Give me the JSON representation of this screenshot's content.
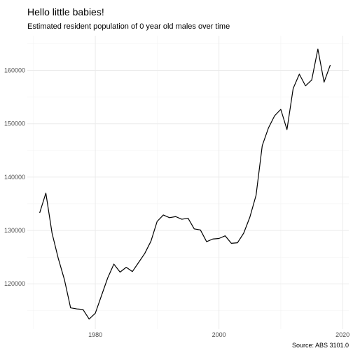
{
  "chart_data": {
    "type": "line",
    "title": "Hello little babies!",
    "subtitle": "Estimated resident population of 0 year old males over time",
    "caption": "Source: ABS 3101.0",
    "xlabel": "",
    "ylabel": "",
    "xlim": [
      1969,
      2021
    ],
    "ylim": [
      111500,
      166500
    ],
    "x_ticks": [
      1980,
      2000,
      2020
    ],
    "y_ticks": [
      120000,
      130000,
      140000,
      150000,
      160000
    ],
    "x_tick_labels": [
      "1980",
      "2000",
      "2020"
    ],
    "y_tick_labels": [
      "120000",
      "130000",
      "140000",
      "150000",
      "160000"
    ],
    "grid": true,
    "legend": "none",
    "line_color": "#000000",
    "x": [
      1971,
      1972,
      1973,
      1974,
      1975,
      1976,
      1977,
      1978,
      1979,
      1980,
      1981,
      1982,
      1983,
      1984,
      1985,
      1986,
      1987,
      1988,
      1989,
      1990,
      1991,
      1992,
      1993,
      1994,
      1995,
      1996,
      1997,
      1998,
      1999,
      2000,
      2001,
      2002,
      2003,
      2004,
      2005,
      2006,
      2007,
      2008,
      2009,
      2010,
      2011,
      2012,
      2013,
      2014,
      2015,
      2016,
      2017,
      2018
    ],
    "y": [
      133300,
      137000,
      129500,
      124800,
      120800,
      115500,
      115300,
      115200,
      113400,
      114500,
      117800,
      121100,
      123700,
      122200,
      123100,
      122300,
      124000,
      125700,
      128000,
      131700,
      132900,
      132400,
      132600,
      132100,
      132300,
      130300,
      130100,
      127900,
      128400,
      128500,
      129000,
      127600,
      127700,
      129500,
      132500,
      136600,
      145900,
      149200,
      151500,
      152700,
      148900,
      156600,
      159300,
      157100,
      158200,
      164000,
      157800,
      161000
    ]
  }
}
